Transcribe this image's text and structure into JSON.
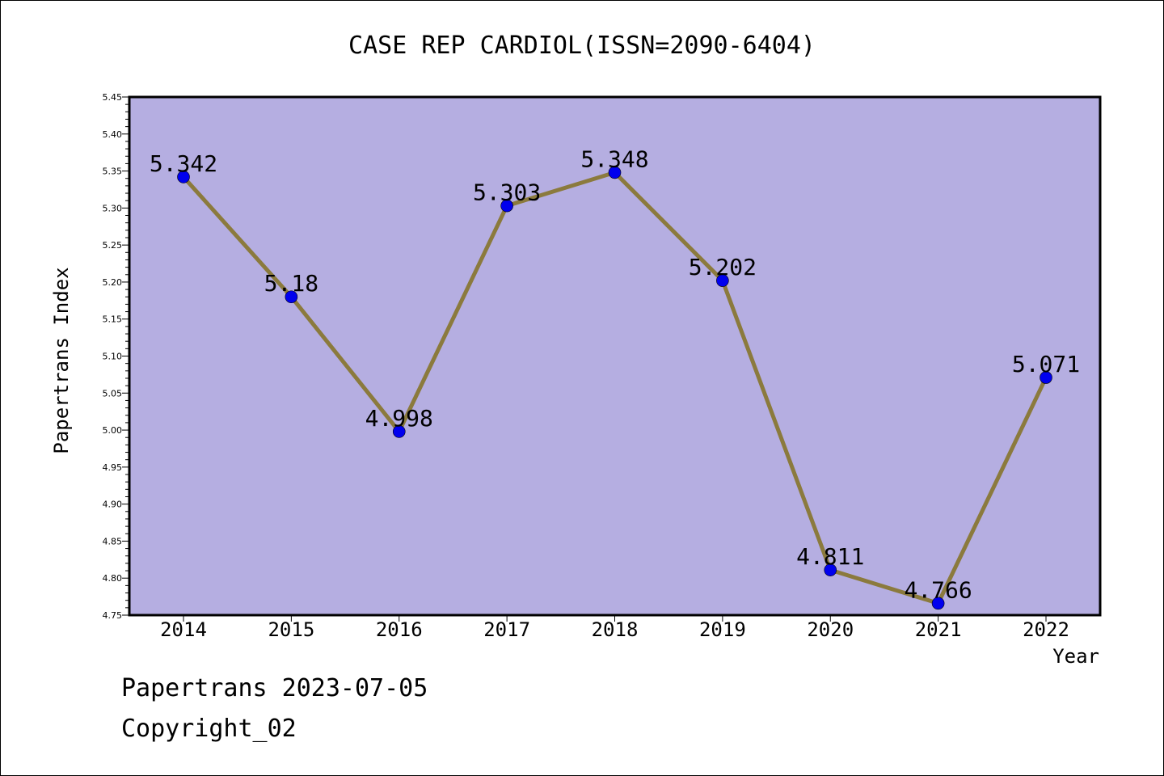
{
  "chart_data": {
    "type": "line",
    "title": "CASE REP CARDIOL(ISSN=2090-6404)",
    "xlabel": "Year",
    "ylabel": "Papertrans Index",
    "x": [
      "2014",
      "2015",
      "2016",
      "2017",
      "2018",
      "2019",
      "2020",
      "2021",
      "2022"
    ],
    "series": [
      {
        "values": [
          5.342,
          5.18,
          4.998,
          5.303,
          5.348,
          5.202,
          4.811,
          4.766,
          5.071
        ],
        "labels": [
          "5.342",
          "5.18",
          "4.998",
          "5.303",
          "5.348",
          "5.202",
          "4.811",
          "4.766",
          "5.071"
        ]
      }
    ],
    "ylim": [
      4.75,
      5.45
    ],
    "yticks": [
      "4.75",
      "4.80",
      "4.85",
      "4.90",
      "4.95",
      "5.00",
      "5.05",
      "5.10",
      "5.15",
      "5.20",
      "5.25",
      "5.30",
      "5.35",
      "5.40",
      "5.45"
    ],
    "grid": false,
    "colors": {
      "plot_background": "#b5aee1",
      "line": "#8b7a3d",
      "marker": "#0000ee"
    }
  },
  "footer": {
    "line1": "Papertrans 2023-07-05",
    "line2": "Copyright_02"
  }
}
